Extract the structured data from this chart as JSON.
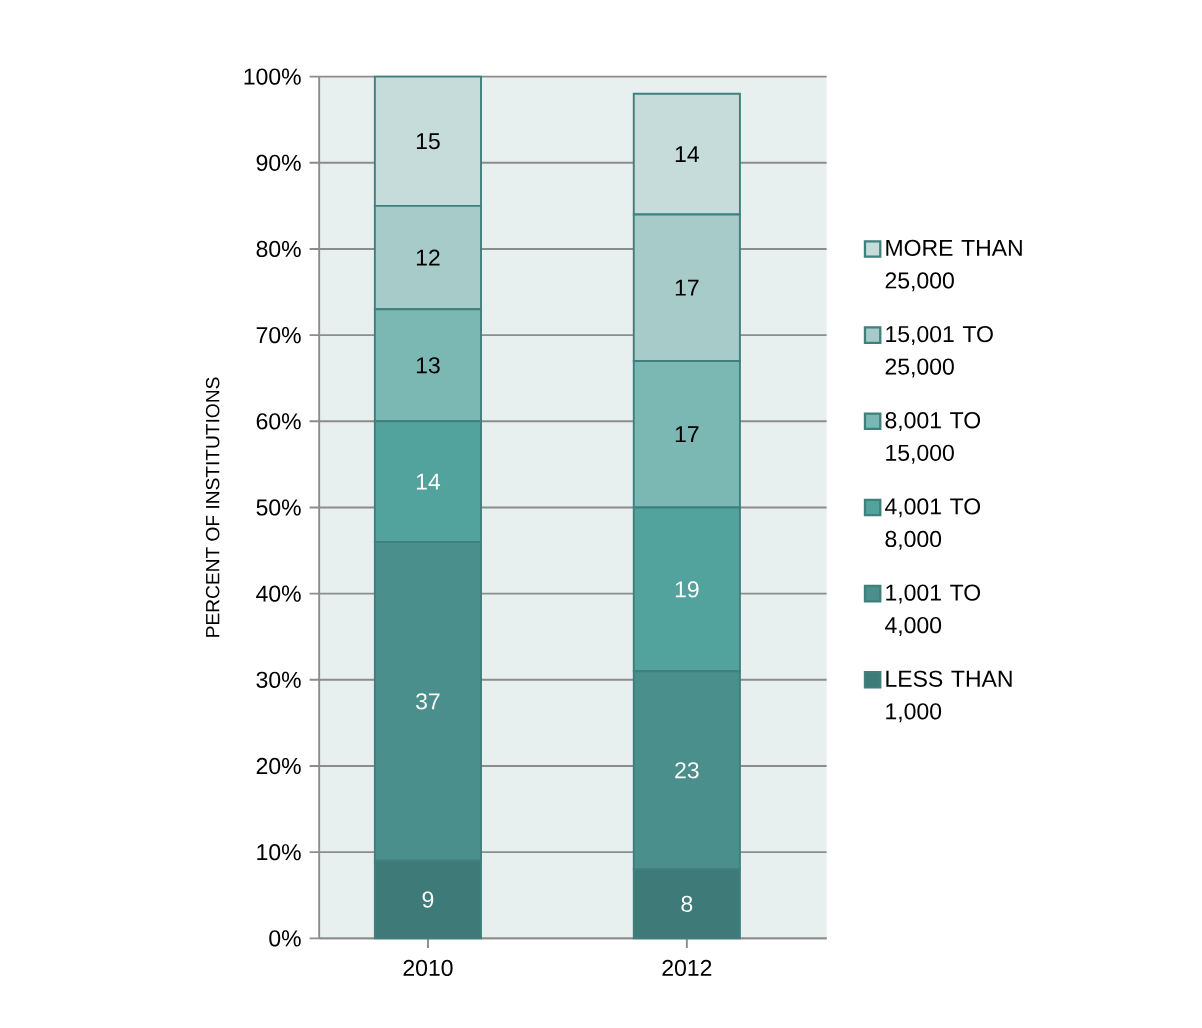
{
  "chart_data": {
    "type": "bar",
    "stacked": true,
    "ylabel": "PERCENT OF INSTITUTIONS",
    "categories": [
      "2010",
      "2012"
    ],
    "series": [
      {
        "name": "LESS THAN 1,000",
        "color": "#3d7a78",
        "values": [
          9,
          8
        ]
      },
      {
        "name": "1,001 TO 4,000",
        "color": "#4a8f8b",
        "values": [
          37,
          23
        ]
      },
      {
        "name": "4,001 TO 8,000",
        "color": "#52a29e",
        "values": [
          14,
          19
        ]
      },
      {
        "name": "8,001 TO 15,000",
        "color": "#7bb7b3",
        "values": [
          13,
          17
        ]
      },
      {
        "name": "15,001 TO 25,000",
        "color": "#a6cbc8",
        "values": [
          12,
          17
        ]
      },
      {
        "name": "MORE THAN 25,000",
        "color": "#c6dcda",
        "values": [
          15,
          14
        ]
      }
    ],
    "ylim": [
      0,
      100
    ],
    "yticks": [
      {
        "value": 0,
        "label": "0%"
      },
      {
        "value": 10,
        "label": "10%"
      },
      {
        "value": 20,
        "label": "20%"
      },
      {
        "value": 30,
        "label": "30%"
      },
      {
        "value": 40,
        "label": "40%"
      },
      {
        "value": 50,
        "label": "50%"
      },
      {
        "value": 60,
        "label": "60%"
      },
      {
        "value": 70,
        "label": "70%"
      },
      {
        "value": 80,
        "label": "80%"
      },
      {
        "value": 90,
        "label": "90%"
      },
      {
        "value": 100,
        "label": "100%"
      }
    ],
    "grid": "y",
    "legend": "right",
    "data_labels": true
  }
}
